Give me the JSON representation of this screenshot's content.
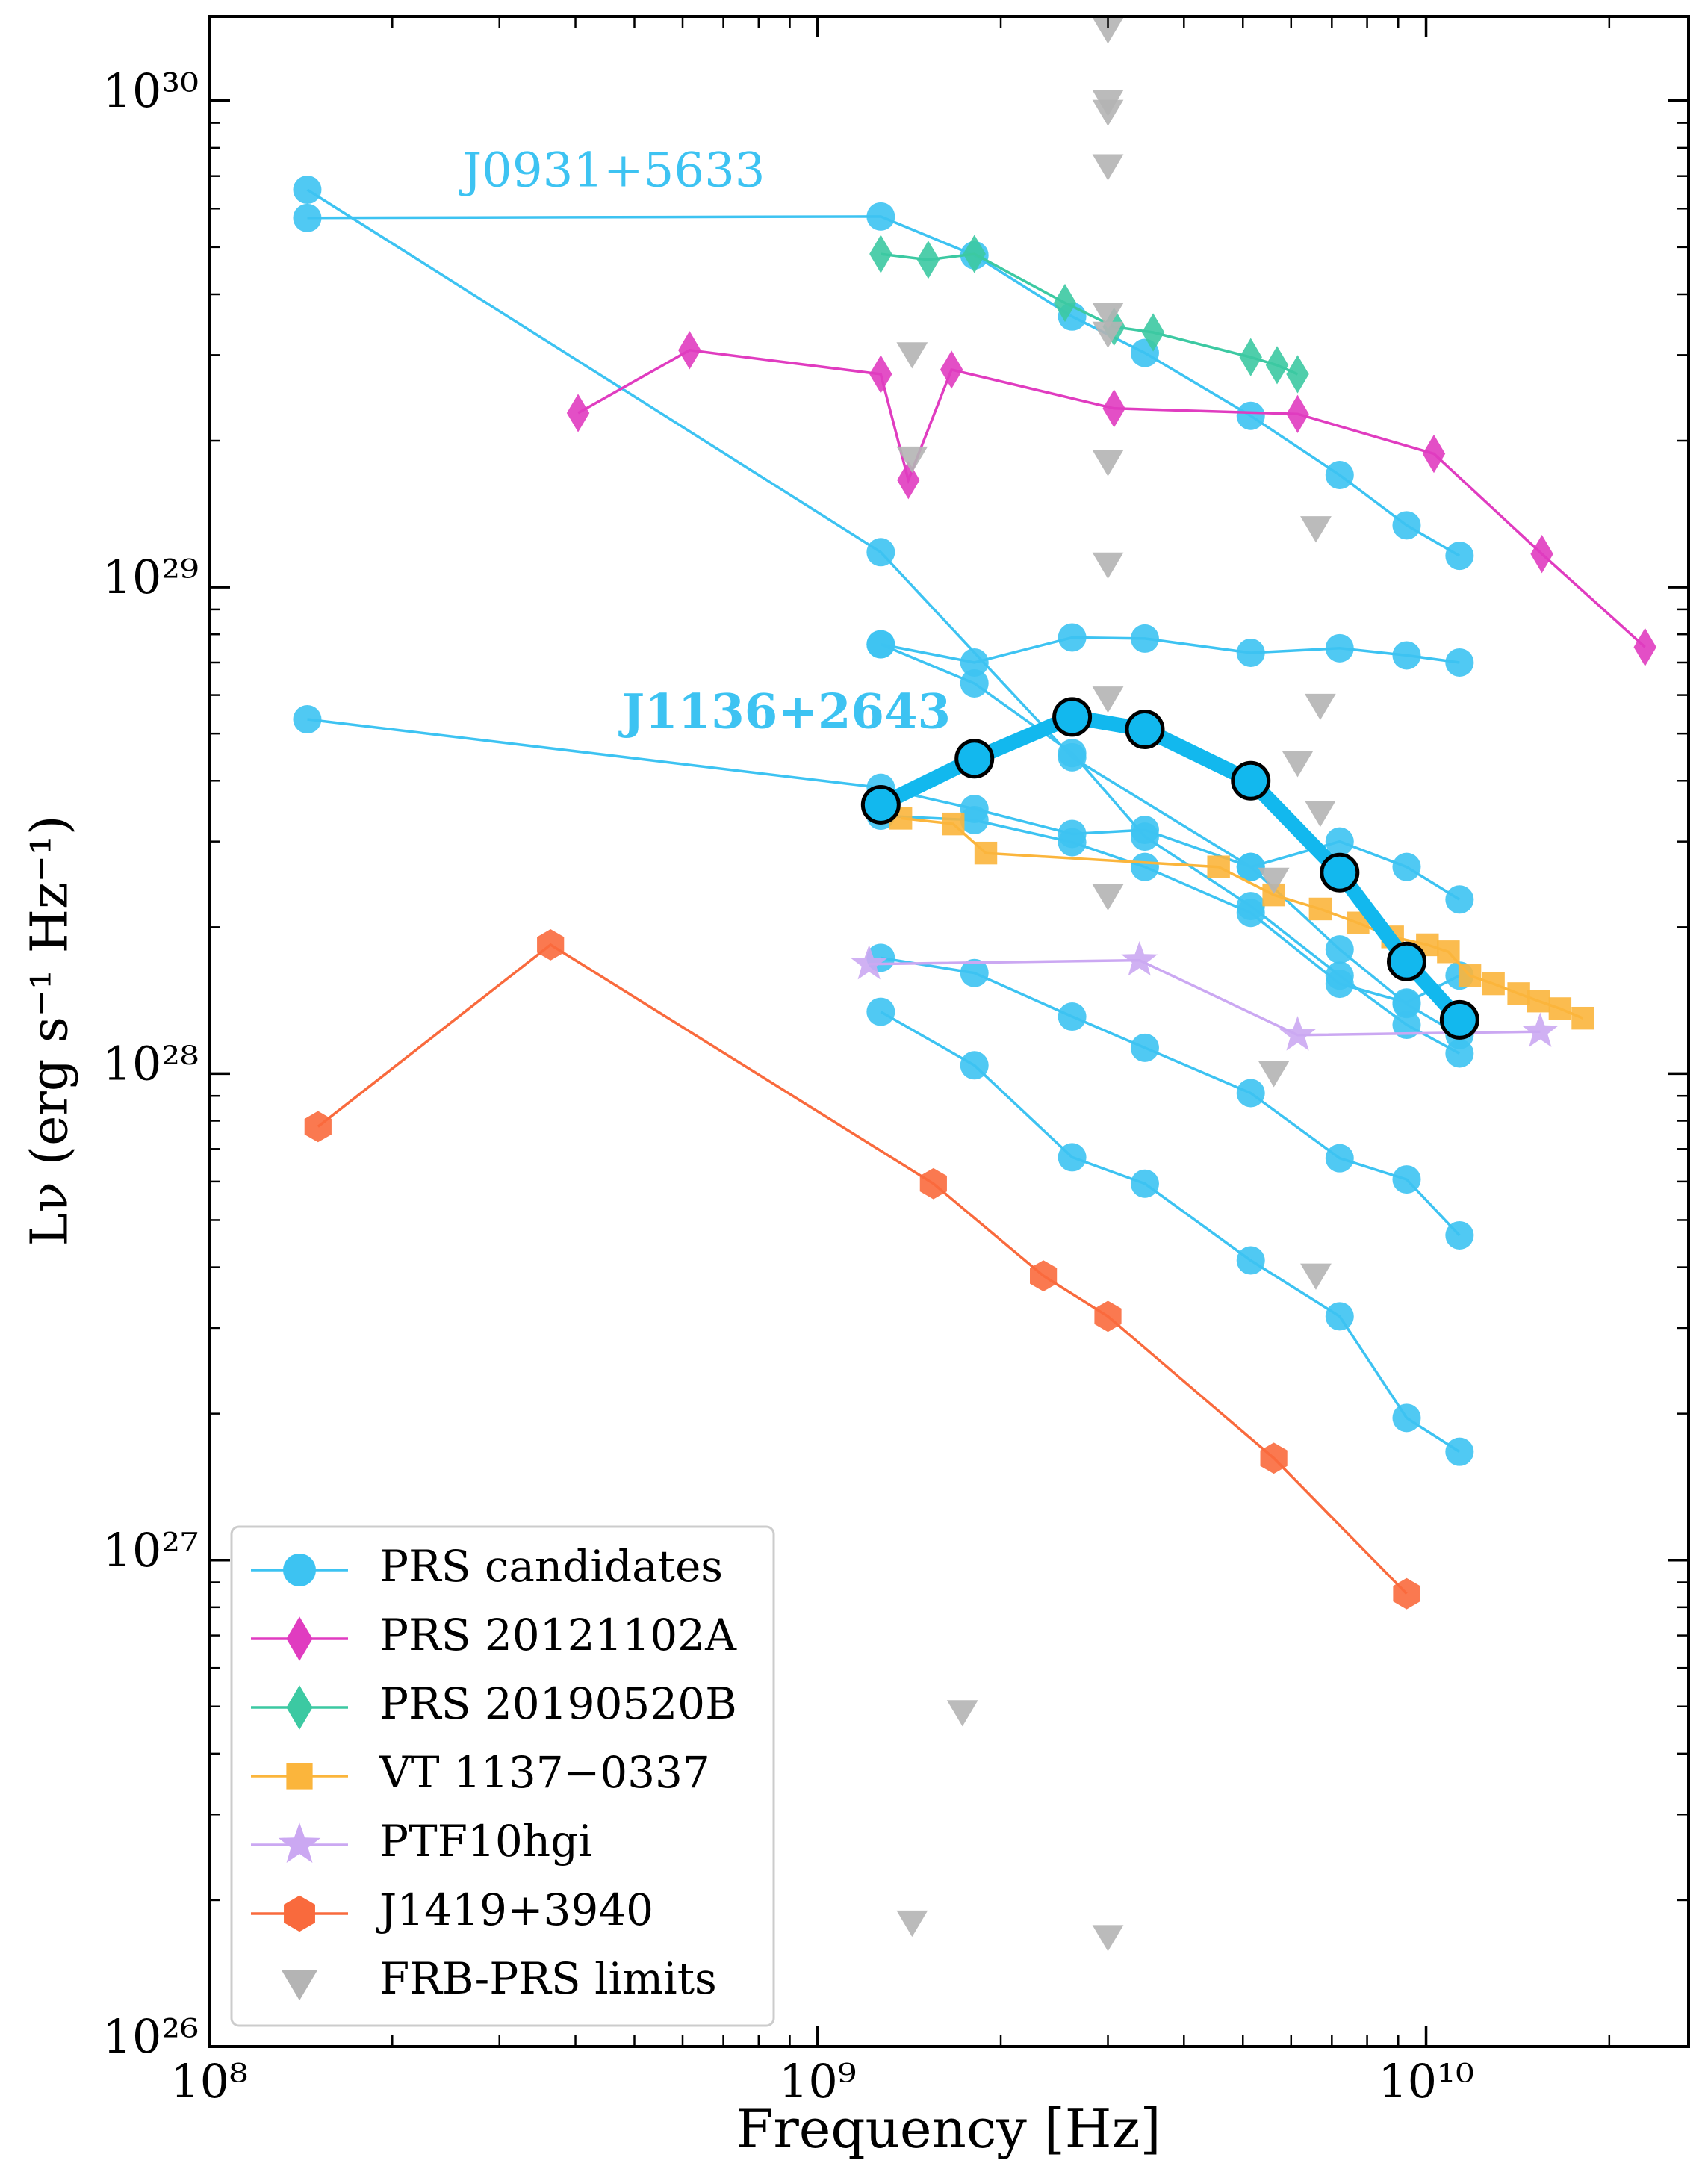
{
  "chart_data": {
    "type": "scatter",
    "xlabel": "Frequency [Hz]",
    "ylabel": "Lν (erg s⁻¹ Hz⁻¹)",
    "log_x": true,
    "log_y": true,
    "xlim": [
      100000000.0,
      27000000000.0
    ],
    "ylim": [
      1e+26,
      1.49e+30
    ],
    "xticks": [
      {
        "value": 100000000.0,
        "label": "10⁸"
      },
      {
        "value": 1000000000.0,
        "label": "10⁹"
      },
      {
        "value": 10000000000.0,
        "label": "10¹⁰"
      }
    ],
    "yticks": [
      {
        "value": 1e+26,
        "label": "10²⁶"
      },
      {
        "value": 1e+27,
        "label": "10²⁷"
      },
      {
        "value": 1e+28,
        "label": "10²⁸"
      },
      {
        "value": 1e+29,
        "label": "10²⁹"
      },
      {
        "value": 1e+30,
        "label": "10³⁰"
      }
    ],
    "xminor": [
      200000000.0,
      300000000.0,
      400000000.0,
      500000000.0,
      600000000.0,
      700000000.0,
      800000000.0,
      900000000.0,
      2000000000.0,
      3000000000.0,
      4000000000.0,
      5000000000.0,
      6000000000.0,
      7000000000.0,
      8000000000.0,
      9000000000.0,
      20000000000.0
    ],
    "yminor": [
      2e+26,
      3e+26,
      4e+26,
      5e+26,
      6e+26,
      7e+26,
      8e+26,
      9e+26,
      2e+27,
      3e+27,
      4e+27,
      5e+27,
      6e+27,
      7e+27,
      8e+27,
      9e+27,
      2e+28,
      3e+28,
      4e+28,
      5e+28,
      6e+28,
      7e+28,
      8e+28,
      9e+28,
      2e+29,
      3e+29,
      4e+29,
      5e+29,
      6e+29,
      7e+29,
      8e+29,
      9e+29
    ],
    "legend": "lower left",
    "annotations": [
      "J0931+5633",
      "J1136+2643"
    ],
    "series": [
      {
        "name": "PRS candidates",
        "color": "#3dc3f2",
        "marker": "circle",
        "lines": [
          {
            "x": [
              145000000.0,
              1270000000.0,
              1810000000.0,
              2620000000.0,
              3450000000.0,
              5150000000.0,
              7210000000.0,
              9290000000.0,
              11350000000.0
            ],
            "y": [
              5.74e+29,
              5.78e+29,
              4.81e+29,
              3.6e+29,
              3.03e+29,
              2.25e+29,
              1.7e+29,
              1.34e+29,
              1.16e+29
            ]
          },
          {
            "x": [
              145000000.0,
              1270000000.0,
              2620000000.0,
              5150000000.0,
              7210000000.0,
              9290000000.0,
              11350000000.0
            ],
            "y": [
              6.56e+29,
              1.18e+29,
              4.47e+28,
              2.66e+28,
              1.8e+28,
              1.39e+28,
              1.2e+28
            ]
          },
          {
            "x": [
              1270000000.0,
              1810000000.0,
              2620000000.0,
              3450000000.0,
              5150000000.0,
              7210000000.0,
              9290000000.0,
              11350000000.0
            ],
            "y": [
              7.63e+28,
              7e+28,
              7.88e+28,
              7.84e+28,
              7.33e+28,
              7.49e+28,
              7.24e+28,
              7e+28
            ]
          },
          {
            "x": [
              145000000.0,
              1270000000.0,
              1810000000.0,
              2620000000.0,
              3450000000.0,
              5150000000.0,
              7210000000.0,
              9290000000.0,
              11350000000.0
            ],
            "y": [
              5.35e+28,
              3.87e+28,
              3.5e+28,
              3.11e+28,
              3.17e+28,
              2.66e+28,
              3e+28,
              2.66e+28,
              2.28e+28
            ]
          },
          {
            "x": [
              1270000000.0,
              1810000000.0,
              2620000000.0,
              3450000000.0,
              5150000000.0,
              7210000000.0,
              9290000000.0,
              11350000000.0
            ],
            "y": [
              7.63e+28,
              6.34e+28,
              4.56e+28,
              3.07e+28,
              2.21e+28,
              1.59e+28,
              1.26e+28,
              1.1e+28
            ]
          },
          {
            "x": [
              1270000000.0,
              1810000000.0,
              2620000000.0,
              3450000000.0,
              5150000000.0,
              7210000000.0,
              9290000000.0,
              11350000000.0
            ],
            "y": [
              3.39e+28,
              3.32e+28,
              2.99e+28,
              2.66e+28,
              2.14e+28,
              1.53e+28,
              1.4e+28,
              1.59e+28
            ]
          },
          {
            "x": [
              1270000000.0,
              1810000000.0,
              2620000000.0,
              3450000000.0,
              5150000000.0,
              7210000000.0,
              9290000000.0,
              11350000000.0
            ],
            "y": [
              1.73e+28,
              1.61e+28,
              1.31e+28,
              1.13e+28,
              9.12e+27,
              6.7e+27,
              6.06e+27,
              4.65e+27
            ]
          },
          {
            "x": [
              1270000000.0,
              1810000000.0,
              2620000000.0,
              3450000000.0,
              5150000000.0,
              7210000000.0,
              9290000000.0,
              11350000000.0
            ],
            "y": [
              1.34e+28,
              1.04e+28,
              6.73e+27,
              5.94e+27,
              4.13e+27,
              3.17e+27,
              1.96e+27,
              1.67e+27
            ]
          }
        ]
      },
      {
        "name": "PRS 20121102A",
        "color": "#e03cc0",
        "marker": "diamond",
        "x": [
          404000000.0,
          616000000.0,
          1270000000.0,
          1410000000.0,
          1660000000.0,
          3070000000.0,
          6150000000.0,
          10300000000.0,
          15500000000.0,
          22900000000.0
        ],
        "y": [
          2.28e+29,
          3.07e+29,
          2.74e+29,
          1.66e+29,
          2.8e+29,
          2.33e+29,
          2.27e+29,
          1.88e+29,
          1.17e+29,
          7.53e+28
        ]
      },
      {
        "name": "PRS 20190520B",
        "color": "#3cc9a2",
        "marker": "diamond",
        "x": [
          1270000000.0,
          1520000000.0,
          1810000000.0,
          2550000000.0,
          3070000000.0,
          3560000000.0,
          5150000000.0,
          5690000000.0,
          6150000000.0
        ],
        "y": [
          4.84e+29,
          4.71e+29,
          4.84e+29,
          3.84e+29,
          3.43e+29,
          3.34e+29,
          2.97e+29,
          2.86e+29,
          2.74e+29
        ]
      },
      {
        "name": "VT 1137−0337",
        "color": "#fbb53c",
        "marker": "square",
        "x": [
          1370000000.0,
          1670000000.0,
          1890000000.0,
          4560000000.0,
          5620000000.0,
          6700000000.0,
          7730000000.0,
          8810000000.0,
          10050000000.0,
          10880000000.0,
          11800000000.0,
          12900000000.0,
          14200000000.0,
          15300000000.0,
          16600000000.0,
          18100000000.0
        ],
        "y": [
          3.35e+28,
          3.26e+28,
          2.84e+28,
          2.66e+28,
          2.33e+28,
          2.18e+28,
          2.04e+28,
          1.91e+28,
          1.84e+28,
          1.78e+28,
          1.59e+28,
          1.53e+28,
          1.46e+28,
          1.41e+28,
          1.36e+28,
          1.3e+28
        ]
      },
      {
        "name": "PTF10hgi",
        "color": "#cba8f2",
        "marker": "star",
        "x": [
          1215000000.0,
          3380000000.0,
          6150000000.0,
          15400000000.0
        ],
        "y": [
          1.68e+28,
          1.71e+28,
          1.2e+28,
          1.22e+28
        ]
      },
      {
        "name": "J1419+3940",
        "color": "#f96a3d",
        "marker": "hexagon",
        "x": [
          151000000.0,
          364000000.0,
          1550000000.0,
          2350000000.0,
          3000000000.0,
          5620000000.0,
          9290000000.0
        ],
        "y": [
          7.78e+27,
          1.84e+28,
          5.94e+27,
          3.84e+27,
          3.17e+27,
          1.62e+27,
          8.53e+26
        ]
      },
      {
        "name": "FRB-PRS limits",
        "color": "#b4b4b4",
        "marker": "triangle_down",
        "line": false,
        "x": [
          3000000000.0,
          3000000000.0,
          3000000000.0,
          3000000000.0,
          3000000000.0,
          3000000000.0,
          3000000000.0,
          3000000000.0,
          3000000000.0,
          3000000000.0,
          3000000000.0,
          1430000000.0,
          1430000000.0,
          1430000000.0,
          6590000000.0,
          6590000000.0,
          6700000000.0,
          6700000000.0,
          6150000000.0,
          5620000000.0,
          5620000000.0,
          1730000000.0
        ],
        "y": [
          1.41e+30,
          1e+30,
          9.55e+29,
          7.38e+29,
          3.65e+29,
          3.34e+29,
          1.82e+29,
          1.12e+29,
          5.94e+28,
          2.33e+28,
          1.69e+26,
          3.03e+29,
          1.85e+29,
          1.81e+26,
          1.33e+29,
          3.87e+27,
          5.74e+28,
          3.46e+28,
          4.38e+28,
          2.52e+28,
          1.01e+28,
          4.9e+26
        ]
      }
    ],
    "highlight": {
      "color": "#12b8ee",
      "edge": "#000000",
      "x": [
        1270000000.0,
        1810000000.0,
        2620000000.0,
        3450000000.0,
        5150000000.0,
        7210000000.0,
        9290000000.0,
        11350000000.0
      ],
      "y": [
        3.57e+28,
        4.44e+28,
        5.41e+28,
        5.1e+28,
        4e+28,
        2.59e+28,
        1.7e+28,
        1.29e+28
      ]
    }
  }
}
